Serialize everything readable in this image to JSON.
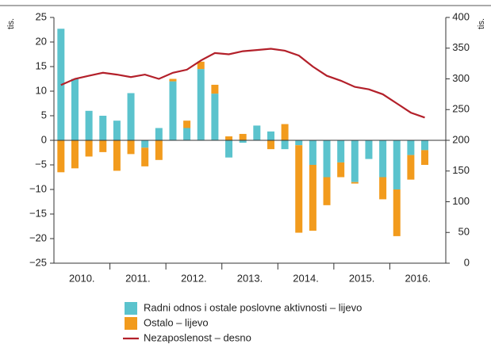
{
  "chart_data": {
    "type": "bar",
    "y_unit": "tis.",
    "y2_unit": "tis.",
    "year_labels": [
      "2010.",
      "2011.",
      "2012.",
      "2013.",
      "2014.",
      "2015.",
      "2016."
    ],
    "categories": [
      null,
      null,
      null,
      null,
      null,
      null,
      null,
      null,
      null,
      null,
      null,
      null,
      null,
      null,
      null,
      null,
      null,
      null,
      null,
      null,
      null,
      null,
      null,
      null,
      null,
      null,
      null,
      null
    ],
    "series": [
      {
        "name": "Radni odnos i ostale poslovne aktivnosti – lijevo",
        "type": "bar",
        "color": "#5bc3cd",
        "values": [
          22.7,
          12.5,
          6,
          5,
          4,
          9.6,
          -1.5,
          2.5,
          12,
          2.5,
          14.5,
          9.5,
          -3.5,
          -0.5,
          3,
          1.8,
          -1.8,
          -1,
          -5,
          -7.5,
          -4.5,
          -8.5,
          -3.8,
          -7.5,
          -10,
          -3,
          -2,
          null
        ]
      },
      {
        "name": "Ostalo – lijevo",
        "type": "bar",
        "color": "#f29b1d",
        "values": [
          -6.5,
          -5.7,
          -3.3,
          -2.4,
          -6.2,
          -2.8,
          -3.8,
          -4,
          0.5,
          1.5,
          1.5,
          1.8,
          0.8,
          1.3,
          0,
          -1.8,
          3.3,
          -17.8,
          -13.4,
          -5.7,
          -3,
          -0.3,
          0,
          -4.5,
          -9.5,
          -5,
          -3,
          null
        ]
      },
      {
        "name": "Nezaposlenost – desno",
        "type": "line",
        "axis": "y2",
        "color": "#b3202a",
        "values": [
          290,
          300,
          305,
          310,
          307,
          303,
          307,
          300,
          310,
          315,
          330,
          342,
          340,
          345,
          347,
          349,
          346,
          338,
          320,
          305,
          297,
          287,
          283,
          275,
          260,
          245,
          237,
          null
        ]
      }
    ],
    "ylim": [
      -25,
      25
    ],
    "yticks": [
      {
        "value": -25,
        "label": "−25"
      },
      {
        "value": -20,
        "label": "−20"
      },
      {
        "value": -15,
        "label": "−15"
      },
      {
        "value": -10,
        "label": "−10"
      },
      {
        "value": -5,
        "label": "−5"
      },
      0,
      5,
      10,
      15,
      20,
      25
    ],
    "y2lim": [
      0,
      400
    ],
    "y2ticks": [
      0,
      50,
      100,
      150,
      200,
      250,
      300,
      350,
      400
    ]
  }
}
